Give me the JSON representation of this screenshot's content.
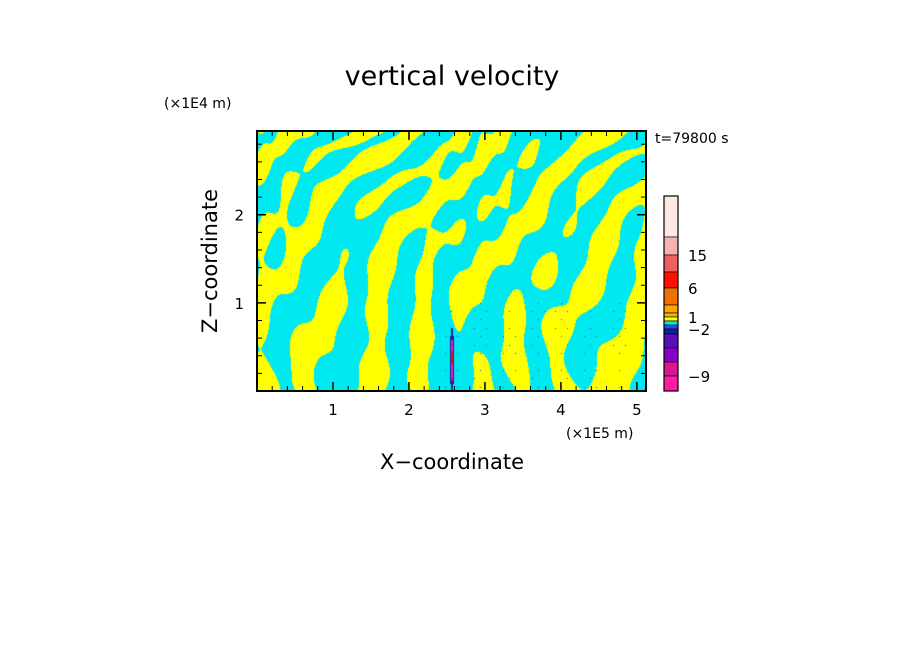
{
  "chart_data": {
    "type": "heatmap",
    "title": "vertical velocity",
    "xlabel": "X−coordinate",
    "ylabel": "Z−coordinate",
    "x_unit": "(×1E5 m)",
    "y_unit": "(×1E4 m)",
    "time_label": "t=79800 s",
    "xlim": [
      0,
      5.12
    ],
    "ylim": [
      0,
      2.95
    ],
    "x_ticks": [
      "1",
      "2",
      "3",
      "4",
      "5"
    ],
    "x_tick_values": [
      1,
      2,
      3,
      4,
      5
    ],
    "y_ticks": [
      "1",
      "2"
    ],
    "y_tick_values": [
      1,
      2
    ],
    "colorbar": {
      "labels": [
        "15",
        "6",
        "1",
        "−2",
        "−9"
      ],
      "label_values": [
        15,
        6,
        1,
        -2,
        -9
      ],
      "levels": [
        {
          "min": -15,
          "max": -9,
          "color": "#ff1aa8"
        },
        {
          "min": -9,
          "max": -6,
          "color": "#d81890"
        },
        {
          "min": -6,
          "max": -4,
          "color": "#8a00c8"
        },
        {
          "min": -4,
          "max": -3,
          "color": "#5a10b8"
        },
        {
          "min": -3,
          "max": -2,
          "color": "#1020a8"
        },
        {
          "min": -2,
          "max": -1,
          "color": "#1858e0"
        },
        {
          "min": -1,
          "max": 0,
          "color": "#00e8f0"
        },
        {
          "min": 0,
          "max": 1,
          "color": "#ffff00"
        },
        {
          "min": 1,
          "max": 2,
          "color": "#e8c000"
        },
        {
          "min": 2,
          "max": 4,
          "color": "#ffa500"
        },
        {
          "min": 4,
          "max": 6,
          "color": "#f07000"
        },
        {
          "min": 6,
          "max": 10,
          "color": "#ff1000"
        },
        {
          "min": 10,
          "max": 15,
          "color": "#f06060"
        },
        {
          "min": 15,
          "max": 20,
          "color": "#f8b0b0"
        },
        {
          "min": 20,
          "max": 30,
          "color": "#ffe8e0"
        }
      ]
    },
    "dominant_fields": {
      "updraft_color": "#ffff00",
      "downdraft_color": "#00e8f0"
    }
  }
}
